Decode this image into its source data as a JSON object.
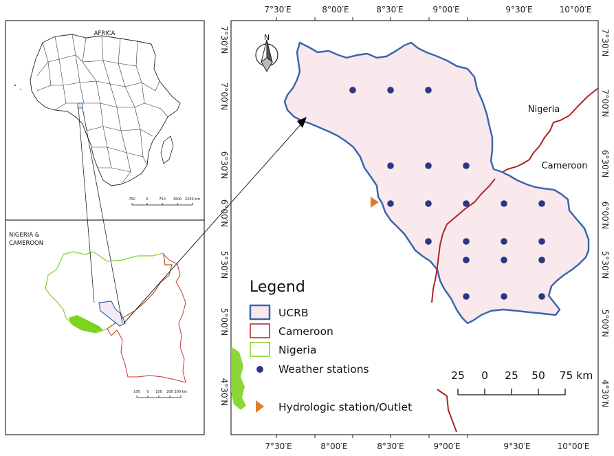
{
  "inset_top": {
    "title": "AFRICA",
    "scale": {
      "ticks": [
        "750",
        "0",
        "750",
        "1500",
        "2250 km"
      ]
    }
  },
  "inset_bottom": {
    "title_lines": [
      "NIGERIA &",
      "CAMEROON"
    ],
    "scale": {
      "ticks": [
        "100",
        "0",
        "100",
        "200",
        "300 km"
      ]
    }
  },
  "main_map": {
    "top_lon_labels": [
      "7°30′E",
      "8°00′E",
      "8°30′E",
      "9°00′E",
      "9°30′E",
      "10°00′E"
    ],
    "bottom_lon_labels": [
      "7°30′E",
      "8°00′E",
      "8°30′E",
      "9°00′E",
      "9°30′E",
      "10°00′E"
    ],
    "left_lat_labels": [
      "7°30′N",
      "7°00′N",
      "6°30′N",
      "6°00′N",
      "5°30′N",
      "5°00′N",
      "4°30′N"
    ],
    "right_lat_labels": [
      "7°30′N",
      "7°00′N",
      "6°30′N",
      "6°00′N",
      "5°30′N",
      "5°00′N",
      "4°30′N"
    ],
    "north_label": "N",
    "country_labels": {
      "nigeria": "Nigeria",
      "cameroon": "Cameroon"
    },
    "scale": {
      "ticks": [
        "25",
        "0",
        "25",
        "50",
        "75 km"
      ]
    }
  },
  "legend": {
    "title": "Legend",
    "items": [
      {
        "label": "UCRB",
        "color": "#3a66ae"
      },
      {
        "label": "Cameroon",
        "color": "#b22222"
      },
      {
        "label": "Nigeria",
        "color": "#7ed321"
      },
      {
        "label": "Weather stations",
        "color": "#2e3582"
      },
      {
        "label": "Hydrologic station/Outlet",
        "color": "#e07b28"
      }
    ]
  },
  "colors": {
    "basin_fill": "#f9e8ec",
    "basin_outline": "#3a66ae",
    "border": "#a82424",
    "station": "#2e3582",
    "outlet": "#e07b28",
    "nigeria": "#7ed321",
    "cameroon": "#c0392b"
  }
}
